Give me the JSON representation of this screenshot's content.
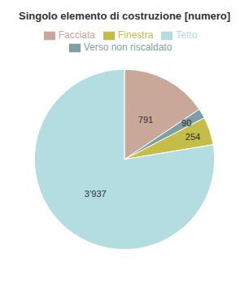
{
  "chart_data": {
    "type": "pie",
    "title": "Singolo elemento di costruzione [numero]",
    "categories": [
      "Facciata",
      "Verso non riscaldato",
      "Finestra",
      "Tetto"
    ],
    "values": [
      791,
      90,
      254,
      3937
    ],
    "value_labels": [
      "791",
      "90",
      "254",
      "3’937"
    ],
    "colors": [
      "#c9a89a",
      "#7f9fa6",
      "#c4bd47",
      "#b3dde0"
    ],
    "data_labels": true,
    "legend": "top"
  }
}
